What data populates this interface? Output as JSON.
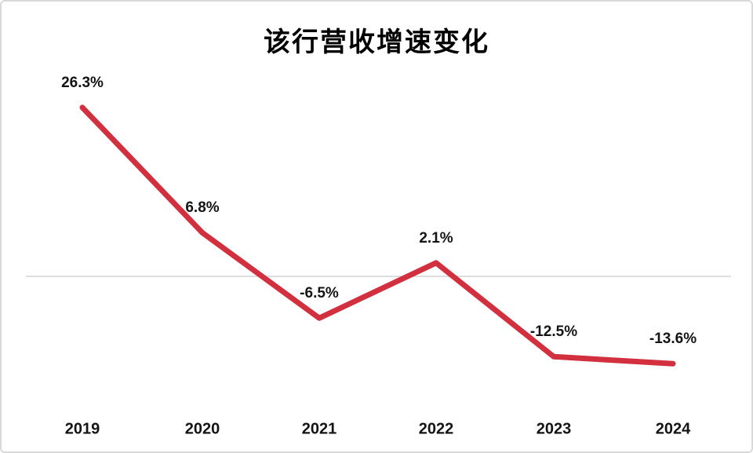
{
  "chart": {
    "title": "该行营收增速变化"
  },
  "chart_data": {
    "type": "line",
    "title": "该行营收增速变化",
    "categories": [
      "2019",
      "2020",
      "2021",
      "2022",
      "2023",
      "2024"
    ],
    "series": [
      {
        "name": "营收增速",
        "values": [
          26.3,
          6.8,
          -6.5,
          2.1,
          -12.5,
          -13.6
        ],
        "point_labels": [
          "26.3%",
          "6.8%",
          "-6.5%",
          "2.1%",
          "-12.5%",
          "-13.6%"
        ]
      }
    ],
    "unit": "%",
    "xlabel": "",
    "ylabel": "",
    "ylim": [
      -20,
      30
    ],
    "grid": "zero-line-only",
    "legend_position": "none",
    "colors": {
      "line": "#d2303e",
      "zero_gridline": "#dedede",
      "label_text": "#141414",
      "title_text": "#000000",
      "frame_border": "#d9d9d9",
      "background": "#ffffff"
    }
  }
}
